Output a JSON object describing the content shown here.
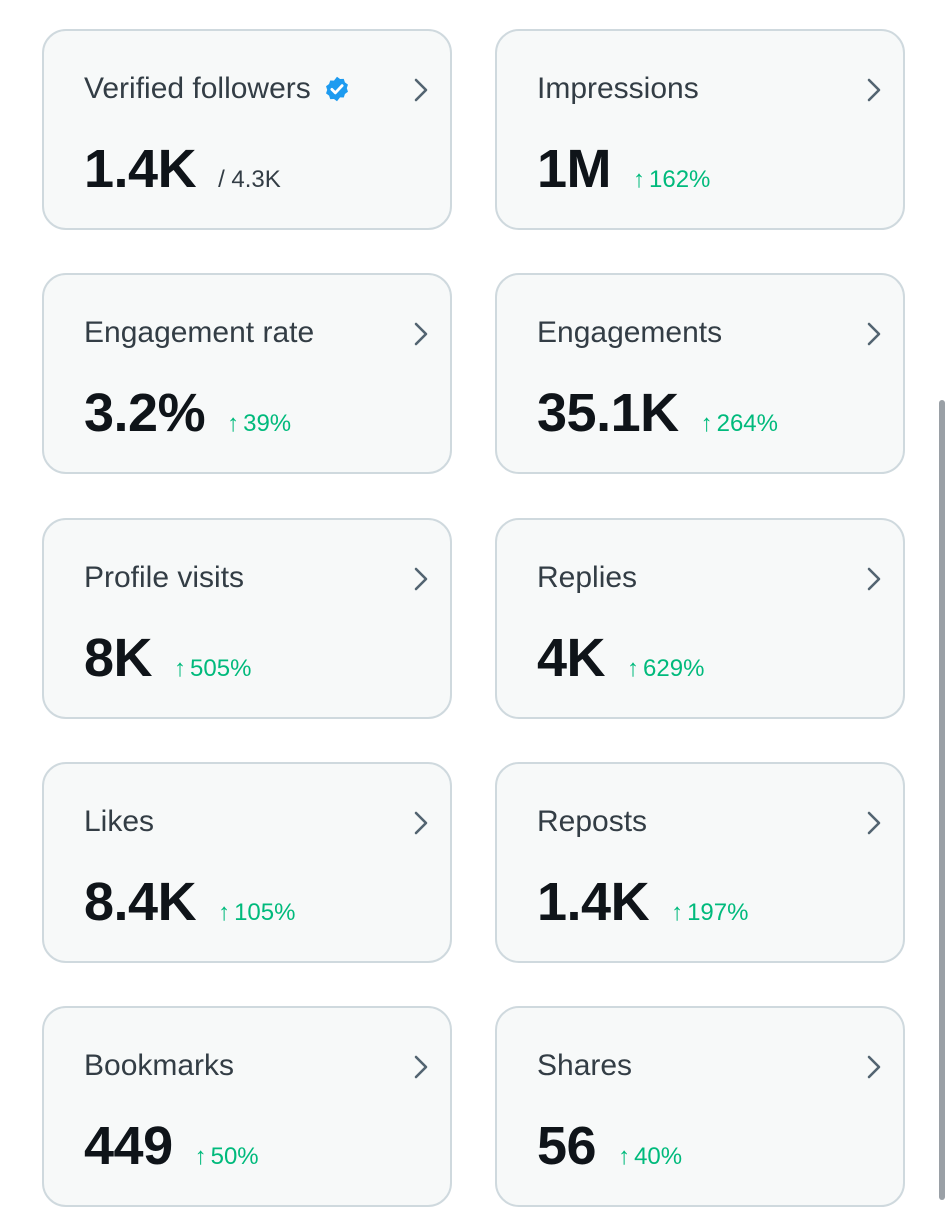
{
  "colors": {
    "card_bg": "#f7f9f9",
    "card_border": "#cfd9de",
    "positive": "#00ba7c",
    "verified": "#1d9bf0",
    "value": "#0f1419",
    "label": "#333d45"
  },
  "cards": [
    {
      "label": "Verified followers",
      "value": "1.4K",
      "sub": "/ 4.3K",
      "icon": "verified-badge-icon"
    },
    {
      "label": "Impressions",
      "value": "1M",
      "delta": "162%",
      "arrow": "↑"
    },
    {
      "label": "Engagement rate",
      "value": "3.2%",
      "delta": "39%",
      "arrow": "↑"
    },
    {
      "label": "Engagements",
      "value": "35.1K",
      "delta": "264%",
      "arrow": "↑"
    },
    {
      "label": "Profile visits",
      "value": "8K",
      "delta": "505%",
      "arrow": "↑"
    },
    {
      "label": "Replies",
      "value": "4K",
      "delta": "629%",
      "arrow": "↑"
    },
    {
      "label": "Likes",
      "value": "8.4K",
      "delta": "105%",
      "arrow": "↑"
    },
    {
      "label": "Reposts",
      "value": "1.4K",
      "delta": "197%",
      "arrow": "↑"
    },
    {
      "label": "Bookmarks",
      "value": "449",
      "delta": "50%",
      "arrow": "↑"
    },
    {
      "label": "Shares",
      "value": "56",
      "delta": "40%",
      "arrow": "↑"
    }
  ]
}
